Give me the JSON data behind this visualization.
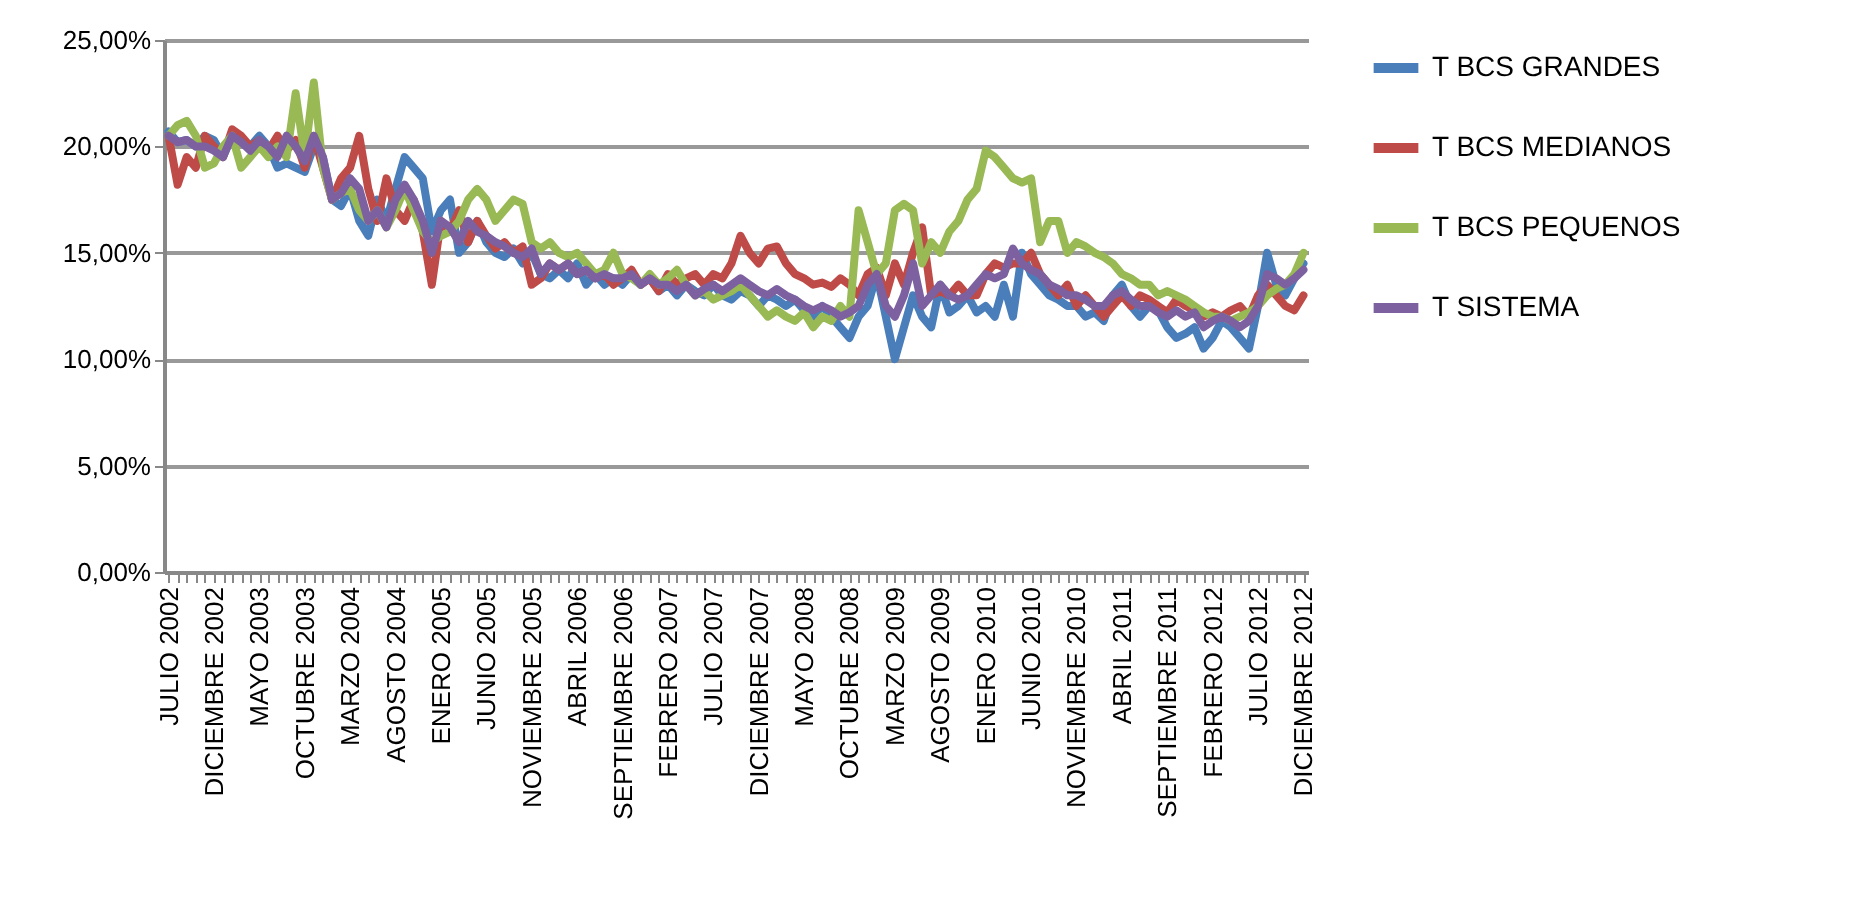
{
  "chart_data": {
    "type": "line",
    "categories": [
      "JULIO 2002",
      null,
      null,
      null,
      null,
      "DICIEMBRE 2002",
      null,
      null,
      null,
      null,
      "MAYO 2003",
      null,
      null,
      null,
      null,
      "OCTUBRE 2003",
      null,
      null,
      null,
      null,
      "MARZO 2004",
      null,
      null,
      null,
      null,
      "AGOSTO 2004",
      null,
      null,
      null,
      null,
      "ENERO 2005",
      null,
      null,
      null,
      null,
      "JUNIO 2005",
      null,
      null,
      null,
      null,
      "NOVIEMBRE 2005",
      null,
      null,
      null,
      null,
      "ABRIL 2006",
      null,
      null,
      null,
      null,
      "SEPTIEMBRE 2006",
      null,
      null,
      null,
      null,
      "FEBRERO 2007",
      null,
      null,
      null,
      null,
      "JULIO 2007",
      null,
      null,
      null,
      null,
      "DICIEMBRE 2007",
      null,
      null,
      null,
      null,
      "MAYO 2008",
      null,
      null,
      null,
      null,
      "OCTUBRE 2008",
      null,
      null,
      null,
      null,
      "MARZO 2009",
      null,
      null,
      null,
      null,
      "AGOSTO 2009",
      null,
      null,
      null,
      null,
      "ENERO 2010",
      null,
      null,
      null,
      null,
      "JUNIO 2010",
      null,
      null,
      null,
      null,
      "NOVIEMBRE 2010",
      null,
      null,
      null,
      null,
      "ABRIL 2011",
      null,
      null,
      null,
      null,
      "SEPTIEMBRE 2011",
      null,
      null,
      null,
      null,
      "FEBRERO 2012",
      null,
      null,
      null,
      null,
      "JULIO 2012",
      null,
      null,
      null,
      null,
      "DICIEMBRE 2012"
    ],
    "series": [
      {
        "name": "T BCS GRANDES",
        "color": "#4a7ebb",
        "values": [
          20.7,
          20.2,
          20.3,
          20,
          20.5,
          20.3,
          19.5,
          20.5,
          20.3,
          20,
          20.5,
          20,
          19,
          19.2,
          19,
          18.8,
          20,
          19.5,
          17.5,
          17.2,
          18,
          16.5,
          15.8,
          17.5,
          16.5,
          18,
          19.5,
          19,
          18.5,
          16,
          17,
          17.5,
          15,
          15.5,
          16.5,
          15.5,
          15,
          14.8,
          15.2,
          14.5,
          15,
          14,
          13.8,
          14.2,
          13.8,
          14.5,
          13.5,
          14,
          13.5,
          13.8,
          13.5,
          14,
          13.5,
          13.8,
          13.2,
          13.5,
          13,
          13.5,
          13.2,
          13,
          13.5,
          13,
          12.8,
          13.2,
          13,
          12.5,
          13,
          12.8,
          12.5,
          12.8,
          12.3,
          12,
          12.5,
          12,
          11.5,
          11,
          12,
          12.5,
          14,
          12,
          10,
          11.5,
          13,
          12,
          11.5,
          13.5,
          12.2,
          12.5,
          13,
          12.2,
          12.5,
          12,
          13.5,
          12,
          15,
          14,
          13.5,
          13,
          12.8,
          12.5,
          12.5,
          12,
          12.2,
          11.8,
          13,
          13.5,
          12.5,
          12,
          12.5,
          12.3,
          11.5,
          11,
          11.2,
          11.5,
          10.5,
          11,
          11.8,
          11.5,
          11,
          10.5,
          12.5,
          15,
          13.5,
          13,
          13.8,
          14.5
        ]
      },
      {
        "name": "T BCS MEDIANOS",
        "color": "#be4b48",
        "values": [
          20.5,
          18.2,
          19.5,
          19,
          20.5,
          20,
          19.5,
          20.8,
          20.5,
          20,
          20.3,
          19.8,
          20.5,
          19.8,
          20.3,
          19,
          20.5,
          19,
          17.5,
          18.5,
          19,
          20.5,
          18,
          16.5,
          18.5,
          17,
          16.5,
          17.5,
          16,
          13.5,
          16.5,
          16,
          17,
          15.5,
          16.5,
          15.8,
          15.2,
          15.5,
          15,
          15.3,
          13.5,
          13.8,
          14.5,
          14.2,
          14.5,
          14,
          14.2,
          13.8,
          14,
          13.5,
          13.8,
          14.2,
          13.5,
          13.8,
          13.2,
          14,
          13.5,
          13.8,
          14,
          13.5,
          14,
          13.8,
          14.5,
          15.8,
          15,
          14.5,
          15.2,
          15.3,
          14.5,
          14,
          13.8,
          13.5,
          13.6,
          13.4,
          13.8,
          13.5,
          13,
          14,
          14.3,
          13,
          14.5,
          13.5,
          15,
          16.2,
          13,
          13.2,
          13,
          13.5,
          13,
          13,
          14,
          14.5,
          14.3,
          14.5,
          14.5,
          15,
          14,
          13.5,
          13,
          13.5,
          12.5,
          13,
          12.5,
          12,
          12.5,
          13,
          12.5,
          13,
          12.8,
          12.5,
          12.2,
          12.8,
          12.5,
          12.3,
          12,
          12.2,
          12,
          12.3,
          12.5,
          12,
          13,
          13.5,
          13,
          12.5,
          12.3,
          13
        ]
      },
      {
        "name": "T BCS PEQUENOS",
        "color": "#98b954",
        "values": [
          20.5,
          21,
          21.2,
          20.5,
          19,
          19.2,
          20,
          20.5,
          19,
          19.5,
          20,
          19.5,
          20,
          19.5,
          22.5,
          19.5,
          23,
          19,
          17.5,
          17.8,
          18,
          17,
          16.5,
          17,
          16.2,
          17,
          18,
          17,
          16,
          15.5,
          15.8,
          16,
          16.5,
          17.5,
          18,
          17.5,
          16.5,
          17,
          17.5,
          17.3,
          15.5,
          15.2,
          15.5,
          15,
          14.8,
          15,
          14.5,
          14,
          14.2,
          15,
          14,
          13.8,
          13.5,
          14,
          13.5,
          13.8,
          14.2,
          13.5,
          13,
          13.2,
          12.8,
          13,
          13.2,
          13.5,
          13,
          12.5,
          12,
          12.3,
          12,
          11.8,
          12.2,
          11.5,
          12,
          11.8,
          12.5,
          12,
          17,
          15.5,
          14,
          14.5,
          17,
          17.3,
          17,
          14.5,
          15.5,
          15,
          16,
          16.5,
          17.5,
          18,
          19.8,
          19.5,
          19,
          18.5,
          18.3,
          18.5,
          15.5,
          16.5,
          16.5,
          15,
          15.5,
          15.3,
          15,
          14.8,
          14.5,
          14,
          13.8,
          13.5,
          13.5,
          13,
          13.2,
          13,
          12.8,
          12.5,
          12.2,
          12,
          12,
          11.8,
          12,
          12.2,
          12.5,
          13,
          13.3,
          13.5,
          14,
          15
        ]
      },
      {
        "name": "T SISTEMA",
        "color": "#7d60a0",
        "values": [
          20.5,
          20.2,
          20.3,
          20,
          20,
          19.8,
          19.5,
          20.5,
          20.2,
          19.8,
          20.3,
          20,
          19.5,
          20.5,
          20,
          19.3,
          20.5,
          19.5,
          17.5,
          17.8,
          18.5,
          18,
          16.5,
          17,
          16.2,
          17.5,
          18.2,
          17.5,
          16.5,
          15,
          16.5,
          16.2,
          15.5,
          16.5,
          16,
          15.8,
          15.5,
          15.3,
          15,
          14.8,
          15.2,
          14,
          14.5,
          14.2,
          14.5,
          14,
          14.2,
          13.8,
          14,
          13.8,
          13.8,
          14,
          13.5,
          13.8,
          13.5,
          13.5,
          13.2,
          13.5,
          13,
          13.3,
          13.5,
          13.2,
          13.5,
          13.8,
          13.5,
          13.2,
          13,
          13.3,
          13,
          12.8,
          12.5,
          12.3,
          12.5,
          12.3,
          12,
          12.2,
          12.5,
          13.5,
          14,
          12.5,
          12,
          13,
          14.5,
          12.5,
          13,
          13.5,
          13,
          12.8,
          13,
          13.5,
          14,
          13.8,
          14,
          15.2,
          14.5,
          14.2,
          14,
          13.5,
          13.3,
          13,
          13,
          12.8,
          12.5,
          12.5,
          13,
          13.2,
          12.8,
          12.5,
          12.5,
          12.2,
          12,
          12.3,
          12,
          12.2,
          11.5,
          11.8,
          12,
          11.8,
          11.5,
          11.8,
          12.5,
          14,
          13.8,
          13.5,
          13.8,
          14.2
        ]
      }
    ],
    "ylim": [
      0,
      25
    ],
    "yticks": [
      {
        "value": 0,
        "label": "0,00%"
      },
      {
        "value": 5,
        "label": "5,00%"
      },
      {
        "value": 10,
        "label": "10,00%"
      },
      {
        "value": 15,
        "label": "15,00%"
      },
      {
        "value": 20,
        "label": "20,00%"
      },
      {
        "value": 25,
        "label": "25,00%"
      }
    ],
    "grid": "y",
    "legend": "right",
    "line_style": "solid",
    "marker": "none"
  }
}
